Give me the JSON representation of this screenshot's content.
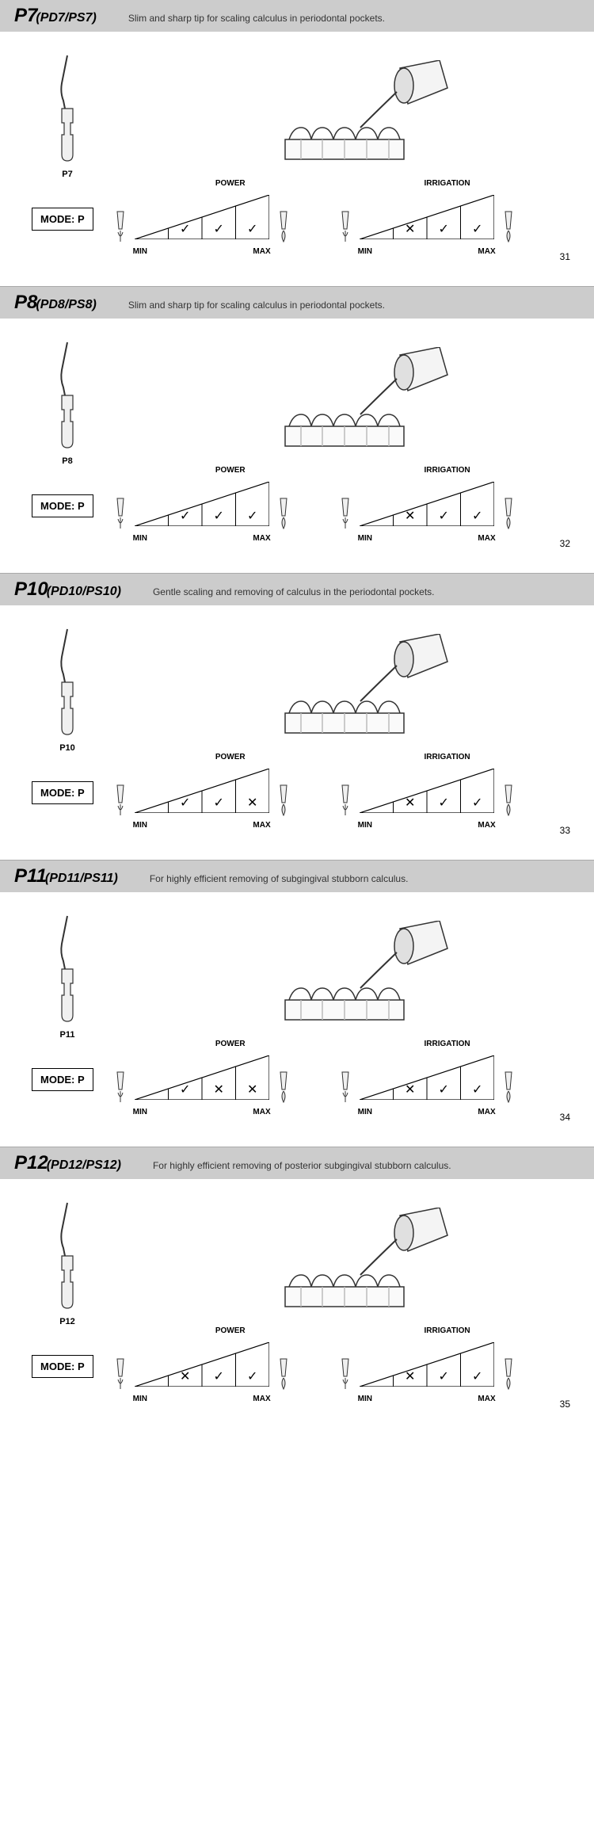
{
  "sections": [
    {
      "title": "P7",
      "sub": "(PD7/PS7)",
      "desc": "Slim and sharp tip for scaling calculus in periodontal pockets.",
      "tip_label": "P7",
      "mode": "MODE: P",
      "power": {
        "label_top": "POWER",
        "min": "MIN",
        "max": "MAX",
        "cells": [
          "",
          "✓",
          "✓",
          "✓"
        ]
      },
      "irrigation": {
        "label_top": "IRRIGATION",
        "min": "MIN",
        "max": "MAX",
        "cells": [
          "",
          "✕",
          "✓",
          "✓"
        ]
      },
      "page": "31"
    },
    {
      "title": "P8",
      "sub": "(PD8/PS8)",
      "desc": "Slim and sharp tip for scaling calculus in periodontal pockets.",
      "tip_label": "P8",
      "mode": "MODE: P",
      "power": {
        "label_top": "POWER",
        "min": "MIN",
        "max": "MAX",
        "cells": [
          "",
          "✓",
          "✓",
          "✓"
        ]
      },
      "irrigation": {
        "label_top": "IRRIGATION",
        "min": "MIN",
        "max": "MAX",
        "cells": [
          "",
          "✕",
          "✓",
          "✓"
        ]
      },
      "page": "32"
    },
    {
      "title": "P10",
      "sub": "(PD10/PS10)",
      "desc": "Gentle scaling and removing of calculus in the periodontal pockets.",
      "tip_label": "P10",
      "mode": "MODE: P",
      "power": {
        "label_top": "POWER",
        "min": "MIN",
        "max": "MAX",
        "cells": [
          "",
          "✓",
          "✓",
          "✕"
        ]
      },
      "irrigation": {
        "label_top": "IRRIGATION",
        "min": "MIN",
        "max": "MAX",
        "cells": [
          "",
          "✕",
          "✓",
          "✓"
        ]
      },
      "page": "33"
    },
    {
      "title": "P11",
      "sub": "(PD11/PS11)",
      "desc": "For highly efficient removing of subgingival stubborn calculus.",
      "tip_label": "P11",
      "mode": "MODE: P",
      "power": {
        "label_top": "POWER",
        "min": "MIN",
        "max": "MAX",
        "cells": [
          "",
          "✓",
          "✕",
          "✕"
        ]
      },
      "irrigation": {
        "label_top": "IRRIGATION",
        "min": "MIN",
        "max": "MAX",
        "cells": [
          "",
          "✕",
          "✓",
          "✓"
        ]
      },
      "page": "34"
    },
    {
      "title": "P12",
      "sub": "(PD12/PS12)",
      "desc": "For highly efficient removing of posterior subgingival stubborn calculus.",
      "tip_label": "P12",
      "mode": "MODE: P",
      "power": {
        "label_top": "POWER",
        "min": "MIN",
        "max": "MAX",
        "cells": [
          "",
          "✕",
          "✓",
          "✓"
        ]
      },
      "irrigation": {
        "label_top": "IRRIGATION",
        "min": "MIN",
        "max": "MAX",
        "cells": [
          "",
          "✕",
          "✓",
          "✓"
        ]
      },
      "page": "35"
    }
  ],
  "style": {
    "band_bg": "#cccccc",
    "text_color": "#000000",
    "triangle_stroke": "#000000",
    "check": "✓",
    "cross": "✕"
  }
}
